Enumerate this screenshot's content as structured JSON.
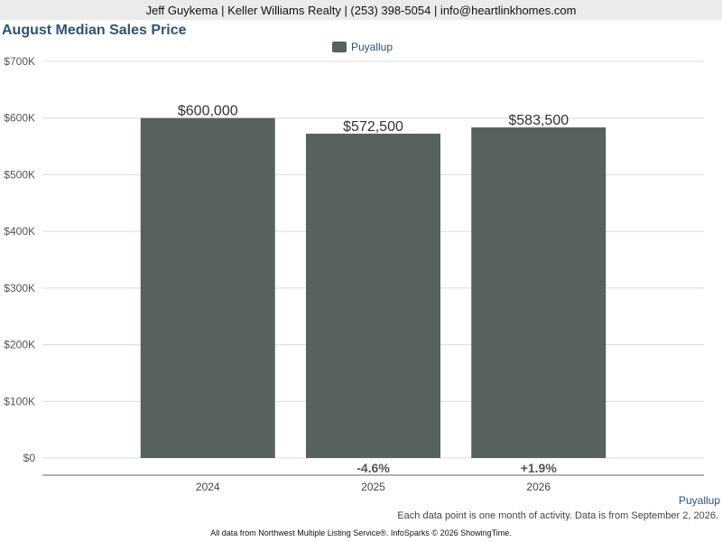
{
  "header": {
    "contact": "Jeff Guykema | Keller Williams Realty | (253) 398-5054 | info@heartlinkhomes.com"
  },
  "chart_data": {
    "type": "bar",
    "title": "August Median Sales Price",
    "categories": [
      "2024",
      "2025",
      "2026"
    ],
    "series": [
      {
        "name": "Puyallup",
        "values": [
          600000,
          572500,
          583500
        ],
        "value_labels": [
          "$600,000",
          "$572,500",
          "$583,500"
        ],
        "color": "#566160"
      }
    ],
    "change_labels": [
      "",
      "-4.6%",
      "+1.9%"
    ],
    "ylim": [
      0,
      700000
    ],
    "yticks": [
      0,
      100000,
      200000,
      300000,
      400000,
      500000,
      600000,
      700000
    ],
    "ytick_labels": [
      "$0",
      "$100K",
      "$200K",
      "$300K",
      "$400K",
      "$500K",
      "$600K",
      "$700K"
    ],
    "grid": true,
    "legend_position": "top-center"
  },
  "footer": {
    "area": "Puyallup",
    "note": "Each data point is one month of activity. Data is from September 2, 2026.",
    "source": "All data from Northwest Multiple Listing Service®. InfoSparks © 2026 ShowingTime."
  }
}
